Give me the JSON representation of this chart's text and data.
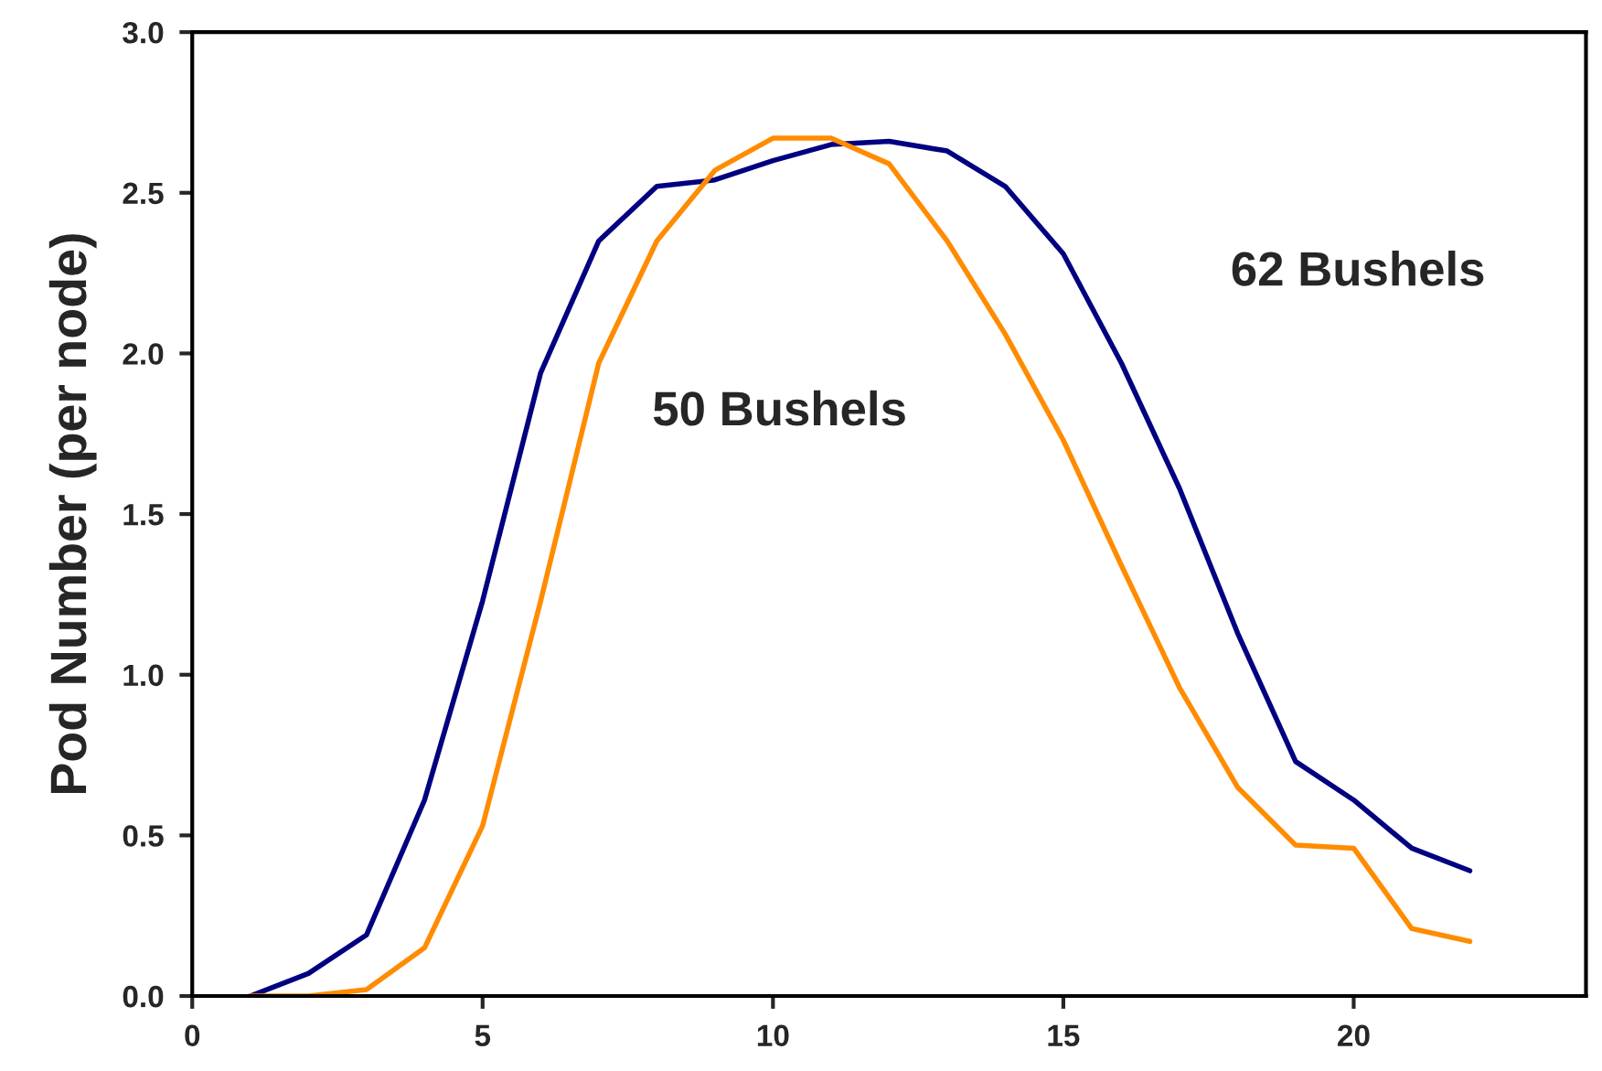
{
  "chart_data": {
    "type": "line",
    "ylabel": "Pod Number (per node)",
    "x": [
      1,
      2,
      3,
      4,
      5,
      6,
      7,
      8,
      9,
      10,
      11,
      12,
      13,
      14,
      15,
      16,
      17,
      18,
      19,
      20,
      21,
      22
    ],
    "series": [
      {
        "name": "62 Bushels",
        "color": "#000080",
        "values": [
          0.0,
          0.07,
          0.19,
          0.61,
          1.23,
          1.94,
          2.35,
          2.52,
          2.54,
          2.6,
          2.65,
          2.66,
          2.63,
          2.52,
          2.31,
          1.97,
          1.58,
          1.13,
          0.73,
          0.61,
          0.46,
          0.39
        ]
      },
      {
        "name": "50 Bushels",
        "color": "#ff8c00",
        "values": [
          0.0,
          0.0,
          0.02,
          0.15,
          0.53,
          1.23,
          1.97,
          2.35,
          2.57,
          2.67,
          2.67,
          2.59,
          2.35,
          2.06,
          1.73,
          1.34,
          0.96,
          0.65,
          0.47,
          0.46,
          0.21,
          0.17
        ]
      }
    ],
    "xlim": [
      0,
      24
    ],
    "xticks": [
      0,
      5,
      10,
      15,
      20
    ],
    "ylim": [
      0,
      3
    ],
    "yticks": [
      {
        "value": 0,
        "label": "0.0"
      },
      {
        "value": 0.5,
        "label": "0.5"
      },
      {
        "value": 1,
        "label": "1.0"
      },
      {
        "value": 1.5,
        "label": "1.5"
      },
      {
        "value": 2,
        "label": "2.0"
      },
      {
        "value": 2.5,
        "label": "2.5"
      },
      {
        "value": 3,
        "label": "3.0"
      }
    ],
    "grid": false,
    "legend": false,
    "marker": "none",
    "line_style": "solid"
  }
}
